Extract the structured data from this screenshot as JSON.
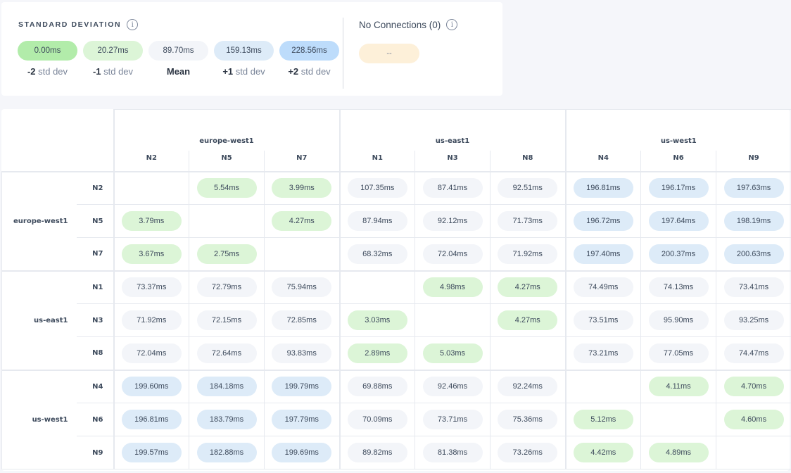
{
  "legend": {
    "title": "STANDARD DEVIATION",
    "items": [
      {
        "value": "0.00ms",
        "prefix": "-2",
        "suffix": "std dev",
        "color": "#b2ecaa"
      },
      {
        "value": "20.27ms",
        "prefix": "-1",
        "suffix": "std dev",
        "color": "#dcf5d7"
      },
      {
        "value": "89.70ms",
        "prefix": "Mean",
        "suffix": "",
        "color": "#f3f5f9"
      },
      {
        "value": "159.13ms",
        "prefix": "+1",
        "suffix": "std dev",
        "color": "#ddebf8"
      },
      {
        "value": "228.56ms",
        "prefix": "+2",
        "suffix": "std dev",
        "color": "#bddcfb"
      }
    ],
    "no_connections_title": "No Connections (0)",
    "no_connections_value": "--"
  },
  "groups": [
    {
      "name": "europe-west1",
      "nodes": [
        "N2",
        "N5",
        "N7"
      ]
    },
    {
      "name": "us-east1",
      "nodes": [
        "N1",
        "N3",
        "N8"
      ]
    },
    {
      "name": "us-west1",
      "nodes": [
        "N4",
        "N6",
        "N9"
      ]
    }
  ],
  "matrix": [
    [
      null,
      "5.54ms",
      "3.99ms",
      "107.35ms",
      "87.41ms",
      "92.51ms",
      "196.81ms",
      "196.17ms",
      "197.63ms"
    ],
    [
      "3.79ms",
      null,
      "4.27ms",
      "87.94ms",
      "92.12ms",
      "71.73ms",
      "196.72ms",
      "197.64ms",
      "198.19ms"
    ],
    [
      "3.67ms",
      "2.75ms",
      null,
      "68.32ms",
      "72.04ms",
      "71.92ms",
      "197.40ms",
      "200.37ms",
      "200.63ms"
    ],
    [
      "73.37ms",
      "72.79ms",
      "75.94ms",
      null,
      "4.98ms",
      "4.27ms",
      "74.49ms",
      "74.13ms",
      "73.41ms"
    ],
    [
      "71.92ms",
      "72.15ms",
      "72.85ms",
      "3.03ms",
      null,
      "4.27ms",
      "73.51ms",
      "95.90ms",
      "93.25ms"
    ],
    [
      "72.04ms",
      "72.64ms",
      "93.83ms",
      "2.89ms",
      "5.03ms",
      null,
      "73.21ms",
      "77.05ms",
      "74.47ms"
    ],
    [
      "199.60ms",
      "184.18ms",
      "199.79ms",
      "69.88ms",
      "92.46ms",
      "92.24ms",
      null,
      "4.11ms",
      "4.70ms"
    ],
    [
      "196.81ms",
      "183.79ms",
      "197.79ms",
      "70.09ms",
      "73.71ms",
      "75.36ms",
      "5.12ms",
      null,
      "4.60ms"
    ],
    [
      "199.57ms",
      "182.88ms",
      "199.69ms",
      "89.82ms",
      "81.38ms",
      "73.26ms",
      "4.42ms",
      "4.89ms",
      null
    ]
  ],
  "colors": {
    "low": "#dcf5d7",
    "mid": "#f3f5f9",
    "high": "#ddebf8"
  }
}
